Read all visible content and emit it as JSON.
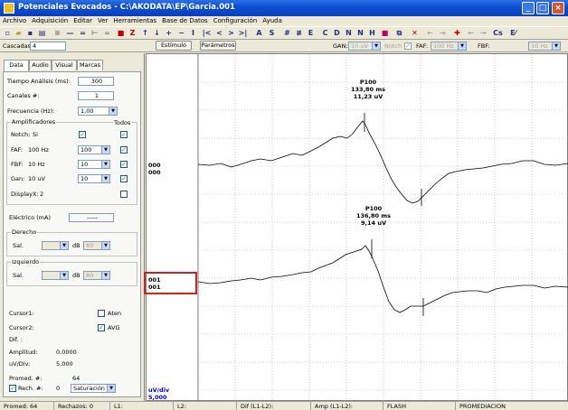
{
  "window": {
    "title": "Potenciales Evocados - C:\\AKODATA\\EP\\Garcia.001"
  },
  "menu": [
    "Archivo",
    "Adquisición",
    "Editar",
    "Ver",
    "Herramientas",
    "Base de Datos",
    "Configuración",
    "Ayuda"
  ],
  "toolbar2": {
    "cascadas_label": "Cascadas #:",
    "cascadas_value": "4",
    "estimulo_button": "Estímulo",
    "parametros_button": "Parámetros",
    "gan_label": "GAN:",
    "gan_value": "10 uV",
    "notch_label": "Notch",
    "faf_label": "FAF:",
    "faf_value": "100 Hz",
    "fbf_label": "FBF:",
    "fbf_value": "10 Hz"
  },
  "tabs": [
    "Data",
    "Audio",
    "Visual",
    "Marcas"
  ],
  "panel": {
    "tiempo_label": "Tiempo Análisis (ms):",
    "tiempo_value": "300",
    "canales_label": "Canales #:",
    "canales_value": "1",
    "frecuencia_label": "Frecuencia (Hz):",
    "frecuencia_value": "1,00",
    "amplificadores_title": "Amplificadores",
    "todos_label": "Todos",
    "notch_label": "Notch:",
    "notch_value": "Si",
    "faf_label": "FAF:",
    "faf_value": "100 Hz",
    "faf_select": "100",
    "fbf_label": "FBF:",
    "fbf_value": "10 Hz",
    "fbf_select": "10",
    "gan_label": "Gan:",
    "gan_value": "10 uV",
    "gan_select": "10",
    "display_label": "DisplayX:",
    "display_value": "2",
    "electrico_label": "Eléctrico (mA)",
    "electrico_value": "-----",
    "derecho_title": "Derecho",
    "izquierdo_title": "Izquierdo",
    "sal_label": "Sal.",
    "db_label": "dB",
    "db_value": "80",
    "cursor1_label": "Cursor1:",
    "cursor2_label": "Cursor2:",
    "aten_label": "Aten",
    "avg_label": "AVG",
    "dif_label": "Dif.  :",
    "amplitud_label": "Amplitud:",
    "amplitud_value": "0,0000",
    "uvdiv_label": "uV/Div:",
    "uvdiv_value": "5,000",
    "promed_label": "Promed. #:",
    "promed_value": "64",
    "rech_label": "Rech. #:",
    "rech_value": "0",
    "saturacion_value": "Saturación"
  },
  "plot": {
    "trace1_label": "000\n000",
    "trace2_label": "001\n001",
    "peak1": "P100\n133,80 ms\n11,23 uV",
    "peak2": "P100\n136,80 ms\n9,14 uV",
    "scale_label": "uV/div\n5,000"
  },
  "status": {
    "promed": "Promed:  64",
    "rechazos": "Rechazos: 0",
    "l1": "L1:",
    "l2": "L2:",
    "dif": "Dif (L1-L2):",
    "amp": "Amp (L1-L2):",
    "flash": "FLASH",
    "promediacion": "PROMEDIACION"
  }
}
